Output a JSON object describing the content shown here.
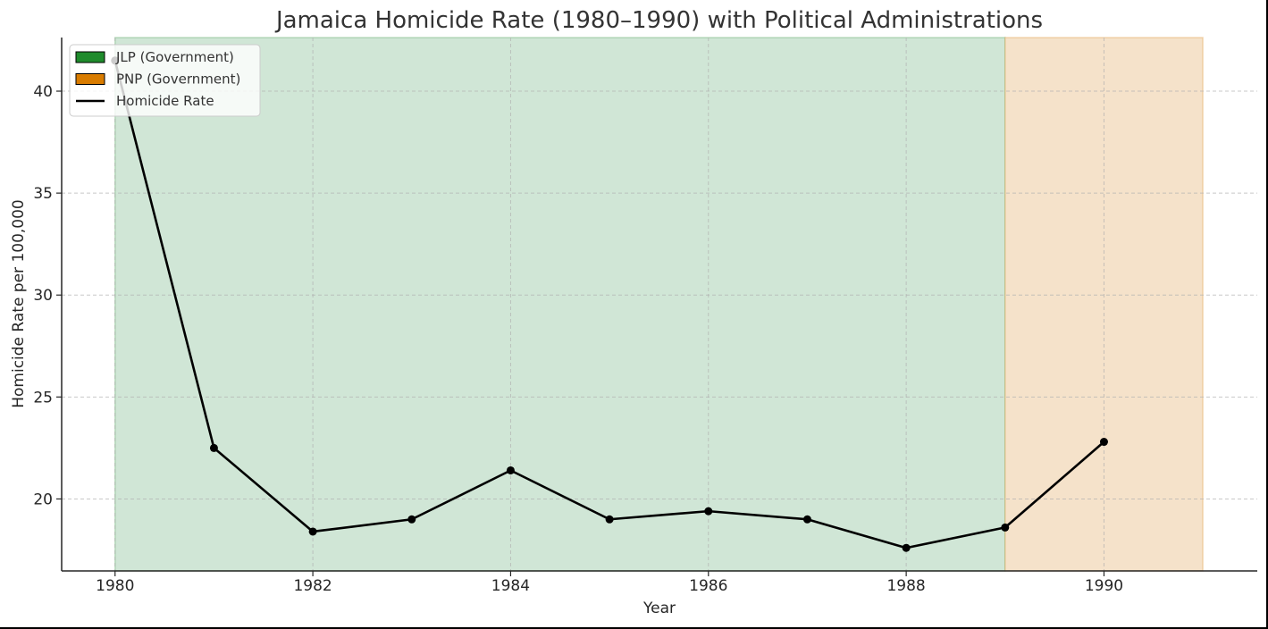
{
  "chart_data": {
    "type": "line",
    "title": "Jamaica Homicide Rate (1980–1990) with Political Administrations",
    "xlabel": "Year",
    "ylabel": "Homicide Rate per 100,000",
    "x": [
      1980,
      1981,
      1982,
      1983,
      1984,
      1985,
      1986,
      1987,
      1988,
      1989,
      1990
    ],
    "series": [
      {
        "name": "Homicide Rate",
        "color": "#000000",
        "marker": "circle",
        "values": [
          41.5,
          22.5,
          18.4,
          19.0,
          21.4,
          19.0,
          19.4,
          19.0,
          17.6,
          18.6,
          22.8
        ]
      }
    ],
    "shaded_regions": [
      {
        "label": "JLP (Government)",
        "start": 1980,
        "end": 1989,
        "color": "#1f8b2c",
        "fill": "#d0e6d6"
      },
      {
        "label": "PNP (Government)",
        "start": 1989,
        "end": 1991,
        "color": "#d97c00",
        "fill": "#f5e2ca"
      }
    ],
    "xticks": [
      1980,
      1982,
      1984,
      1986,
      1988,
      1990
    ],
    "yticks": [
      20,
      25,
      30,
      35,
      40
    ],
    "xlim": [
      1979.46,
      1991.55
    ],
    "ylim": [
      16.47,
      42.63
    ],
    "grid": true,
    "legend_position": "upper left",
    "legend": [
      {
        "label": "JLP (Government)",
        "kind": "patch",
        "color": "#1f8b2c"
      },
      {
        "label": "PNP (Government)",
        "kind": "patch",
        "color": "#d97c00"
      },
      {
        "label": "Homicide Rate",
        "kind": "line",
        "color": "#000000"
      }
    ]
  }
}
